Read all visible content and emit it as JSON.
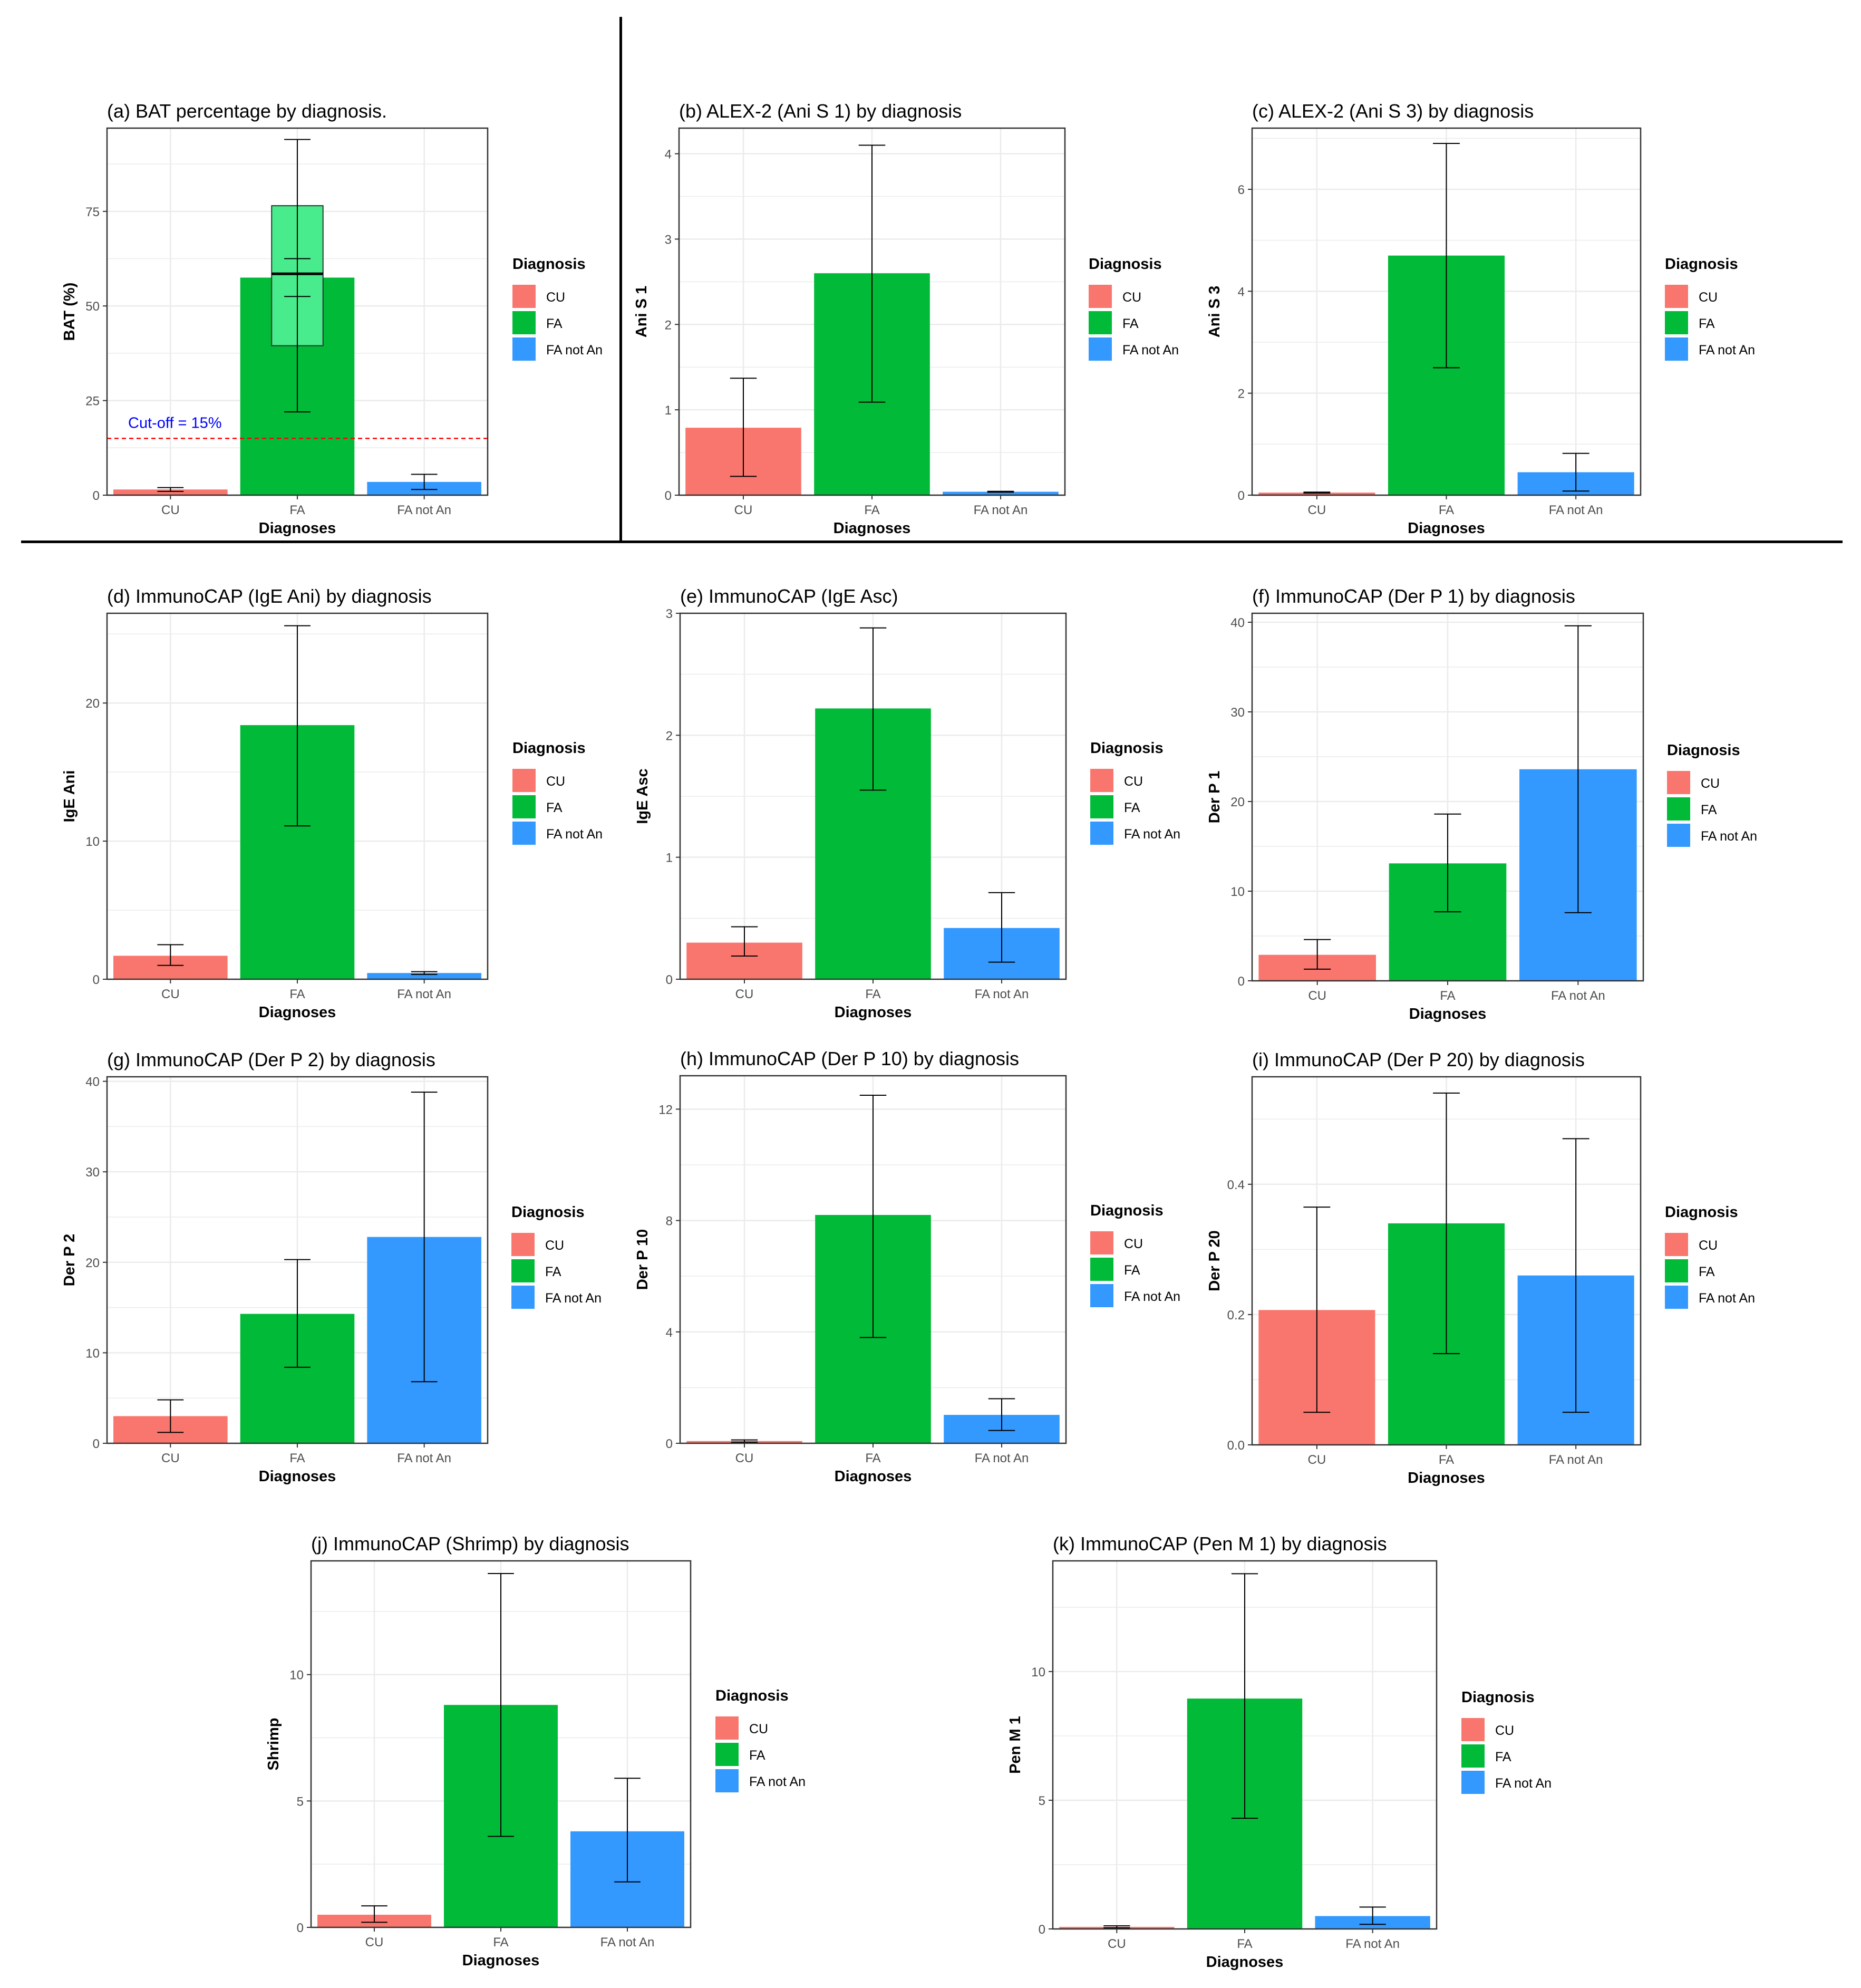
{
  "chart_data": [
    {
      "type": "bar",
      "id": "a",
      "title": "(a) BAT percentage by diagnosis.",
      "xlabel": "Diagnoses",
      "ylabel": "BAT (%)",
      "categories": [
        "CU",
        "FA",
        "FA not An"
      ],
      "values": [
        1.5,
        57.5,
        3.5
      ],
      "error_low": [
        1.0,
        22.0,
        1.5
      ],
      "error_high": [
        2.0,
        94.0,
        5.5
      ],
      "ylim": [
        0,
        97
      ],
      "yticks": [
        0,
        25,
        50,
        75
      ],
      "boxplot": {
        "category": "FA",
        "q1": 39.5,
        "median": 58.5,
        "q3": 76.5,
        "ci_low": 52.5,
        "ci_high": 62.5
      },
      "annotations": [
        {
          "text": "Cut-off = 15%",
          "type": "hline",
          "y": 15,
          "color": "#0000FF"
        }
      ],
      "legend": {
        "title": "Diagnosis",
        "entries": [
          "CU",
          "FA",
          "FA not An"
        ]
      }
    },
    {
      "type": "bar",
      "id": "b",
      "title": "(b) ALEX-2 (Ani S 1) by diagnosis",
      "xlabel": "Diagnoses",
      "ylabel": "Ani S 1",
      "categories": [
        "CU",
        "FA",
        "FA not An"
      ],
      "values": [
        0.79,
        2.6,
        0.04
      ],
      "error_low": [
        0.22,
        1.09,
        0.035
      ],
      "error_high": [
        1.37,
        4.1,
        0.045
      ],
      "ylim": [
        0,
        4.3
      ],
      "yticks": [
        0,
        1,
        2,
        3,
        4
      ],
      "legend": {
        "title": "Diagnosis",
        "entries": [
          "CU",
          "FA",
          "FA not An"
        ]
      }
    },
    {
      "type": "bar",
      "id": "c",
      "title": "(c) ALEX-2 (Ani S 3) by diagnosis",
      "xlabel": "Diagnoses",
      "ylabel": "Ani S 3",
      "categories": [
        "CU",
        "FA",
        "FA not An"
      ],
      "values": [
        0.05,
        4.7,
        0.45
      ],
      "error_low": [
        0.04,
        2.5,
        0.08
      ],
      "error_high": [
        0.06,
        6.9,
        0.82
      ],
      "ylim": [
        0,
        7.2
      ],
      "yticks": [
        0,
        2,
        4,
        6
      ],
      "legend": {
        "title": "Diagnosis",
        "entries": [
          "CU",
          "FA",
          "FA not An"
        ]
      }
    },
    {
      "type": "bar",
      "id": "d",
      "title": "(d) ImmunoCAP (IgE Ani) by diagnosis",
      "xlabel": "Diagnoses",
      "ylabel": "IgE Ani",
      "categories": [
        "CU",
        "FA",
        "FA not An"
      ],
      "values": [
        1.7,
        18.4,
        0.45
      ],
      "error_low": [
        1.0,
        11.1,
        0.35
      ],
      "error_high": [
        2.5,
        25.6,
        0.55
      ],
      "ylim": [
        0,
        26.5
      ],
      "yticks": [
        0,
        10,
        20
      ],
      "legend": {
        "title": "Diagnosis",
        "entries": [
          "CU",
          "FA",
          "FA not An"
        ]
      }
    },
    {
      "type": "bar",
      "id": "e",
      "title": "(e) ImmunoCAP (IgE Asc)",
      "xlabel": "Diagnoses",
      "ylabel": "IgE Asc",
      "categories": [
        "CU",
        "FA",
        "FA not An"
      ],
      "values": [
        0.3,
        2.22,
        0.42
      ],
      "error_low": [
        0.19,
        1.55,
        0.14
      ],
      "error_high": [
        0.43,
        2.88,
        0.71
      ],
      "ylim": [
        0,
        3.0
      ],
      "yticks": [
        0,
        1,
        2,
        3
      ],
      "legend": {
        "title": "Diagnosis",
        "entries": [
          "CU",
          "FA",
          "FA not An"
        ]
      }
    },
    {
      "type": "bar",
      "id": "f",
      "title": "(f) ImmunoCAP (Der P 1) by diagnosis",
      "xlabel": "Diagnoses",
      "ylabel": "Der P 1",
      "categories": [
        "CU",
        "FA",
        "FA not An"
      ],
      "values": [
        2.9,
        13.1,
        23.6
      ],
      "error_low": [
        1.3,
        7.7,
        7.6
      ],
      "error_high": [
        4.6,
        18.6,
        39.6
      ],
      "ylim": [
        0,
        41.0
      ],
      "yticks": [
        0,
        10,
        20,
        30,
        40
      ],
      "legend": {
        "title": "Diagnosis",
        "entries": [
          "CU",
          "FA",
          "FA not An"
        ]
      }
    },
    {
      "type": "bar",
      "id": "g",
      "title": "(g) ImmunoCAP (Der P 2) by diagnosis",
      "xlabel": "Diagnoses",
      "ylabel": "Der P 2",
      "categories": [
        "CU",
        "FA",
        "FA not An"
      ],
      "values": [
        3.0,
        14.3,
        22.8
      ],
      "error_low": [
        1.2,
        8.4,
        6.8
      ],
      "error_high": [
        4.8,
        20.3,
        38.8
      ],
      "ylim": [
        0,
        40.5
      ],
      "yticks": [
        0,
        10,
        20,
        30,
        40
      ],
      "legend": {
        "title": "Diagnosis",
        "entries": [
          "CU",
          "FA",
          "FA not An"
        ]
      }
    },
    {
      "type": "bar",
      "id": "h",
      "title": "(h) ImmunoCAP (Der P 10) by diagnosis",
      "xlabel": "Diagnoses",
      "ylabel": "Der P 10",
      "categories": [
        "CU",
        "FA",
        "FA not An"
      ],
      "values": [
        0.08,
        8.2,
        1.02
      ],
      "error_low": [
        0.04,
        3.8,
        0.46
      ],
      "error_high": [
        0.12,
        12.5,
        1.6
      ],
      "ylim": [
        0,
        13.2
      ],
      "yticks": [
        0,
        4,
        8,
        12
      ],
      "legend": {
        "title": "Diagnosis",
        "entries": [
          "CU",
          "FA",
          "FA not An"
        ]
      }
    },
    {
      "type": "bar",
      "id": "i",
      "title": "(i) ImmunoCAP (Der P 20) by diagnosis",
      "xlabel": "Diagnoses",
      "ylabel": "Der P 20",
      "categories": [
        "CU",
        "FA",
        "FA not An"
      ],
      "values": [
        0.207,
        0.34,
        0.26
      ],
      "error_low": [
        0.05,
        0.14,
        0.05
      ],
      "error_high": [
        0.365,
        0.54,
        0.47
      ],
      "ylim": [
        0,
        0.565
      ],
      "yticks": [
        0.0,
        0.2,
        0.4
      ],
      "ytick_labels": [
        "0.0",
        "0.2",
        "0.4"
      ],
      "legend": {
        "title": "Diagnosis",
        "entries": [
          "CU",
          "FA",
          "FA not An"
        ]
      }
    },
    {
      "type": "bar",
      "id": "j",
      "title": "(j) ImmunoCAP (Shrimp) by diagnosis",
      "xlabel": "Diagnoses",
      "ylabel": "Shrimp",
      "categories": [
        "CU",
        "FA",
        "FA not An"
      ],
      "values": [
        0.5,
        8.8,
        3.8
      ],
      "error_low": [
        0.2,
        3.6,
        1.8
      ],
      "error_high": [
        0.85,
        14.0,
        5.9
      ],
      "ylim": [
        0,
        14.5
      ],
      "yticks": [
        0,
        5,
        10
      ],
      "legend": {
        "title": "Diagnosis",
        "entries": [
          "CU",
          "FA",
          "FA not An"
        ]
      }
    },
    {
      "type": "bar",
      "id": "k",
      "title": "(k) ImmunoCAP (Pen M 1) by diagnosis",
      "xlabel": "Diagnoses",
      "ylabel": "Pen M 1",
      "categories": [
        "CU",
        "FA",
        "FA not An"
      ],
      "values": [
        0.08,
        8.95,
        0.5
      ],
      "error_low": [
        0.04,
        4.3,
        0.18
      ],
      "error_high": [
        0.12,
        13.8,
        0.85
      ],
      "ylim": [
        0,
        14.3
      ],
      "yticks": [
        0,
        5,
        10
      ],
      "legend": {
        "title": "Diagnosis",
        "entries": [
          "CU",
          "FA",
          "FA not An"
        ]
      }
    }
  ],
  "colors": {
    "CU": "#F8766D",
    "FA": "#00BA38",
    "FA not An": "#3399FF",
    "box": "#48EC8C",
    "grid": "#EBEBEB",
    "panel_border": "#333333",
    "cutoff_line": "#FF0000",
    "cutoff_text": "#0000FF"
  }
}
